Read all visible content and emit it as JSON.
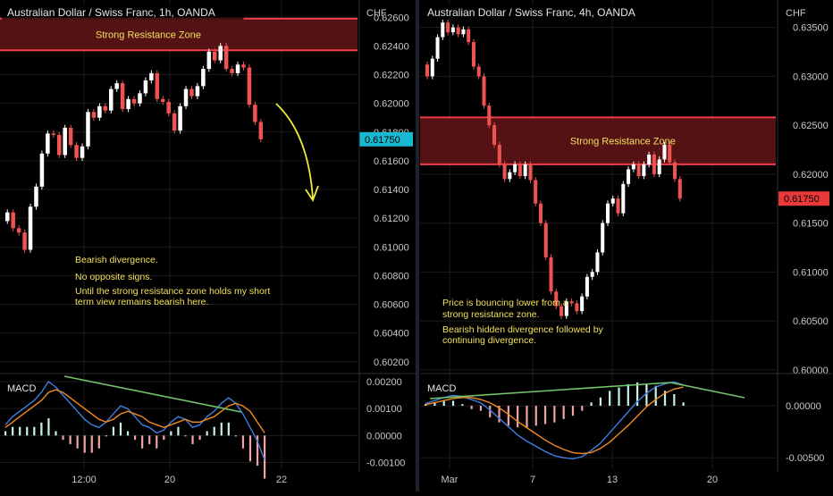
{
  "colors": {
    "background": "#000000",
    "grid": "#1c1c1c",
    "separator": "#2a2e39",
    "axis_text": "#c8c8c8",
    "bull": "#ffffff",
    "bear": "#ef5350",
    "zone_fill": "#5e1417",
    "zone_edge": "#ef3e4a",
    "annotation": "#f3e05a",
    "arrow_yellow": "#eeee3a",
    "trend_green": "#73c46a",
    "macd_line": "#3f7ee0",
    "signal_line": "#f08a24",
    "hist_pos": "#c8f2ec",
    "hist_neg": "#f4a3a3",
    "last_price_left": "#17b8d0",
    "last_price_right": "#e83a3a"
  },
  "chart_data": [
    {
      "type": "candlestick",
      "title": "Australian Dollar / Swiss Franc, 1h, OANDA",
      "currency_label": "CHF",
      "price_ticks": [
        "0.62600",
        "0.62400",
        "0.62200",
        "0.62000",
        "0.61800",
        "0.61600",
        "0.61400",
        "0.61200",
        "0.61000",
        "0.60800",
        "0.60600",
        "0.60400",
        "0.60200"
      ],
      "x_ticks": [
        "12:00",
        "20",
        "22"
      ],
      "ylim": [
        0.6013,
        0.6272
      ],
      "last_price": "0.61750",
      "resistance_zone": {
        "label": "Strong Resistance Zone",
        "high": 0.6259,
        "low": 0.6237
      },
      "price_path": [
        0.6118,
        0.6124,
        0.6113,
        0.611,
        0.6098,
        0.6128,
        0.6142,
        0.6165,
        0.6179,
        0.6178,
        0.6164,
        0.6183,
        0.6171,
        0.6162,
        0.617,
        0.6194,
        0.619,
        0.6198,
        0.6195,
        0.621,
        0.6214,
        0.6196,
        0.6203,
        0.62,
        0.6207,
        0.6216,
        0.6221,
        0.6203,
        0.6201,
        0.6193,
        0.6181,
        0.6198,
        0.621,
        0.6205,
        0.6212,
        0.6224,
        0.6236,
        0.623,
        0.624,
        0.6224,
        0.6221,
        0.6227,
        0.6225,
        0.6199,
        0.6187,
        0.6175
      ],
      "annotations": [
        "Bearish divergence.",
        "No opposite signs.",
        "Until the strong resistance zone holds my short",
        "term view remains bearish here."
      ],
      "macd": {
        "label": "MACD",
        "ticks": [
          "0.00200",
          "0.00100",
          "0.00000",
          "-0.00100"
        ],
        "ylim": [
          -0.00125,
          0.0023
        ],
        "macd": [
          0.0004,
          0.0007,
          0.0009,
          0.0011,
          0.0013,
          0.0016,
          0.002,
          0.0018,
          0.0015,
          0.0012,
          0.0009,
          0.0006,
          0.0004,
          0.0003,
          0.0005,
          0.0008,
          0.0011,
          0.001,
          0.0007,
          0.0004,
          0.0003,
          0.0001,
          0.0002,
          0.0005,
          0.0007,
          0.0006,
          0.0003,
          0.0004,
          0.0007,
          0.0009,
          0.0012,
          0.0014,
          0.0012,
          0.0008,
          0.0003,
          -0.0002,
          -0.0009
        ],
        "signal": [
          0.0003,
          0.0005,
          0.0007,
          0.0009,
          0.0011,
          0.0013,
          0.0016,
          0.0017,
          0.0016,
          0.0014,
          0.0012,
          0.001,
          0.0008,
          0.0006,
          0.0005,
          0.0006,
          0.0008,
          0.0009,
          0.0008,
          0.0007,
          0.0005,
          0.0004,
          0.0003,
          0.0004,
          0.0005,
          0.0006,
          0.0005,
          0.0005,
          0.0006,
          0.0007,
          0.0009,
          0.0011,
          0.0012,
          0.0011,
          0.0009,
          0.0005,
          0.0001
        ]
      }
    },
    {
      "type": "candlestick",
      "title": "Australian Dollar / Swiss Franc, 4h, OANDA",
      "currency_label": "CHF",
      "price_ticks": [
        "0.63500",
        "0.63000",
        "0.62500",
        "0.62000",
        "0.61500",
        "0.61000",
        "0.60500",
        "0.60000"
      ],
      "x_ticks": [
        "Mar",
        "7",
        "13",
        "20"
      ],
      "ylim": [
        0.5998,
        0.6378
      ],
      "last_price": "0.61750",
      "resistance_zone": {
        "label": "Strong Resistance Zone",
        "high": 0.6258,
        "low": 0.621
      },
      "price_path": [
        0.6312,
        0.63,
        0.6318,
        0.634,
        0.6355,
        0.6345,
        0.635,
        0.6343,
        0.6348,
        0.6335,
        0.631,
        0.63,
        0.627,
        0.625,
        0.623,
        0.621,
        0.6195,
        0.6202,
        0.621,
        0.6198,
        0.621,
        0.6194,
        0.617,
        0.615,
        0.6115,
        0.608,
        0.6065,
        0.6055,
        0.607,
        0.6068,
        0.606,
        0.6075,
        0.6095,
        0.61,
        0.612,
        0.615,
        0.617,
        0.6175,
        0.616,
        0.619,
        0.6205,
        0.621,
        0.6198,
        0.621,
        0.622,
        0.62,
        0.6215,
        0.623,
        0.6212,
        0.6195,
        0.6175
      ],
      "annotations": [
        "Price is bouncing lower from a",
        "strong resistance zone.",
        "Bearish hidden divergence followed by",
        "continuing divergence."
      ],
      "macd": {
        "label": "MACD",
        "ticks": [
          "0.00000",
          "-0.00500"
        ],
        "ylim": [
          -0.0061,
          0.0031
        ],
        "macd": [
          0.0002,
          0.0005,
          0.0008,
          0.001,
          0.0009,
          0.0006,
          0.0003,
          -0.0004,
          -0.0012,
          -0.002,
          -0.0028,
          -0.0034,
          -0.0039,
          -0.0044,
          -0.0048,
          -0.005,
          -0.0051,
          -0.0049,
          -0.0043,
          -0.0036,
          -0.0026,
          -0.0016,
          -0.0006,
          0.0004,
          0.0012,
          0.0018,
          0.0021,
          0.0023,
          0.002
        ],
        "signal": [
          0.0001,
          0.0003,
          0.0005,
          0.0007,
          0.0008,
          0.0008,
          0.0006,
          0.0003,
          -0.0002,
          -0.0008,
          -0.0015,
          -0.0021,
          -0.0027,
          -0.0033,
          -0.0038,
          -0.0042,
          -0.0045,
          -0.0046,
          -0.0045,
          -0.0041,
          -0.0035,
          -0.0027,
          -0.0019,
          -0.001,
          -0.0001,
          0.0006,
          0.0012,
          0.0016,
          0.0018
        ]
      }
    }
  ]
}
